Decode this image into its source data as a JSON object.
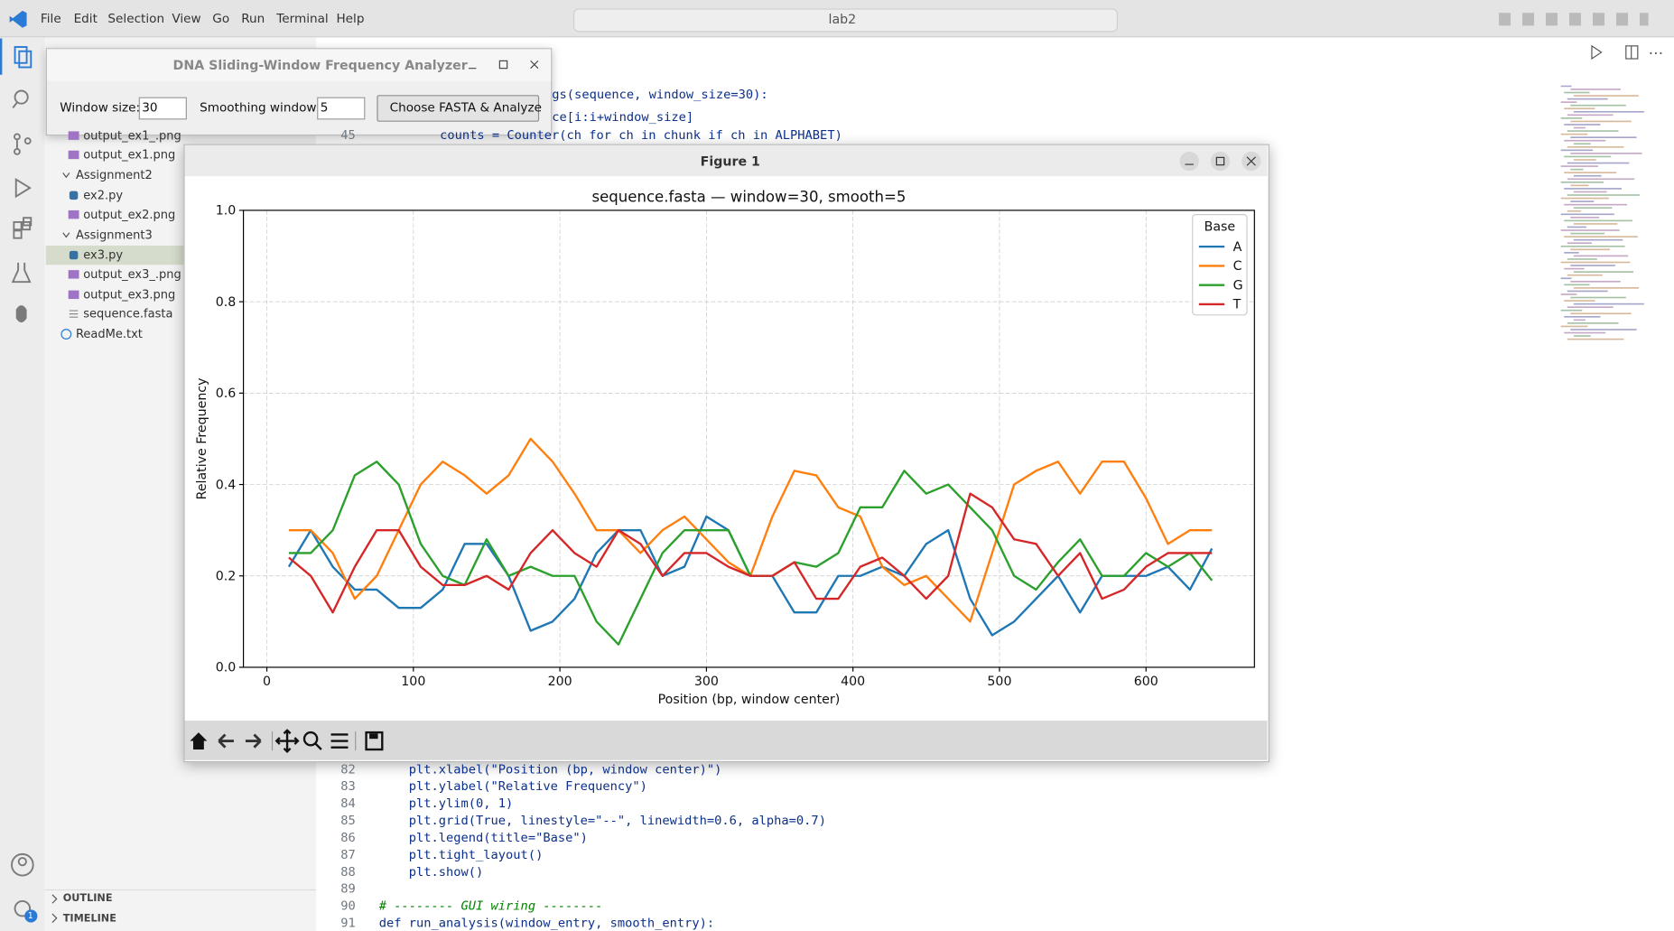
{
  "menu": [
    "File",
    "Edit",
    "Selection",
    "View",
    "Go",
    "Run",
    "Terminal",
    "Help"
  ],
  "search": "lab2",
  "explorer": [
    "output_ex1_.png",
    "output_ex1.png",
    "Assignment2",
    "ex2.py",
    "output_ex2.png",
    "Assignment3",
    "ex3.py",
    "output_ex3_.png",
    "output_ex3.png",
    "sequence.fasta",
    "ReadMe.txt"
  ],
  "panels": [
    "OUTLINE",
    "TIMELINE"
  ],
  "badge": "1",
  "editor": {
    "top_lines": [
      {
        "text": "gs(sequence, window_size=30):"
      },
      {
        "text": "ce[i:i+window_size]"
      },
      {
        "number": "45",
        "text": "counts = Counter(ch for ch in chunk if ch in ALPHABET)"
      }
    ],
    "bottom_lines": [
      {
        "number": "82",
        "text": "    plt.xlabel(\"Position (bp, window center)\")"
      },
      {
        "number": "83",
        "text": "    plt.ylabel(\"Relative Frequency\")"
      },
      {
        "number": "84",
        "text": "    plt.ylim(0, 1)"
      },
      {
        "number": "85",
        "text": "    plt.grid(True, linestyle=\"--\", linewidth=0.6, alpha=0.7)"
      },
      {
        "number": "86",
        "text": "    plt.legend(title=\"Base\")"
      },
      {
        "number": "87",
        "text": "    plt.tight_layout()"
      },
      {
        "number": "88",
        "text": "    plt.show()"
      },
      {
        "number": "89"
      },
      {
        "number": "90",
        "text": "# -------- GUI wiring --------"
      },
      {
        "number": "91",
        "text": "def run_analysis(window_entry, smooth_entry):"
      }
    ]
  },
  "dialog": {
    "title": "DNA Sliding-Window Frequency Analyzer",
    "window_size_label": "Window size:",
    "window_size": "30",
    "smoothing_label": "Smoothing window:",
    "smoothing": "5",
    "button": "Choose FASTA & Analyze"
  },
  "figure": {
    "title": "Figure 1"
  },
  "chart_data": {
    "type": "line",
    "title": "sequence.fasta — window=30, smooth=5",
    "x_label": "Position (bp, window center)",
    "y_label": "Relative Frequency",
    "legend_title": "Base",
    "legend": "upper right",
    "grid": true,
    "x": [
      15,
      30,
      45,
      60,
      75,
      90,
      105,
      120,
      135,
      150,
      165,
      180,
      195,
      210,
      225,
      240,
      255,
      270,
      285,
      300,
      315,
      330,
      345,
      360,
      375,
      390,
      405,
      420,
      435,
      450,
      465,
      480,
      495,
      510,
      525,
      540,
      555,
      570,
      585,
      600,
      615,
      630,
      645
    ],
    "series": [
      {
        "name": "A",
        "color": "#1f77b4",
        "values": [
          0.22,
          0.3,
          0.22,
          0.17,
          0.17,
          0.13,
          0.13,
          0.17,
          0.27,
          0.27,
          0.2,
          0.08,
          0.1,
          0.15,
          0.25,
          0.3,
          0.3,
          0.2,
          0.22,
          0.33,
          0.3,
          0.2,
          0.2,
          0.12,
          0.12,
          0.2,
          0.2,
          0.22,
          0.2,
          0.27,
          0.3,
          0.15,
          0.07,
          0.1,
          0.15,
          0.2,
          0.12,
          0.2,
          0.2,
          0.2,
          0.22,
          0.17,
          0.26
        ]
      },
      {
        "name": "C",
        "color": "#ff7f0e",
        "values": [
          0.3,
          0.3,
          0.25,
          0.15,
          0.2,
          0.3,
          0.4,
          0.45,
          0.42,
          0.38,
          0.42,
          0.5,
          0.45,
          0.38,
          0.3,
          0.3,
          0.25,
          0.3,
          0.33,
          0.28,
          0.23,
          0.2,
          0.33,
          0.43,
          0.42,
          0.35,
          0.33,
          0.22,
          0.18,
          0.2,
          0.15,
          0.1,
          0.25,
          0.4,
          0.43,
          0.45,
          0.38,
          0.45,
          0.45,
          0.37,
          0.27,
          0.3,
          0.3
        ]
      },
      {
        "name": "G",
        "color": "#2ca02c",
        "values": [
          0.25,
          0.25,
          0.3,
          0.42,
          0.45,
          0.4,
          0.27,
          0.2,
          0.18,
          0.28,
          0.2,
          0.22,
          0.2,
          0.2,
          0.1,
          0.05,
          0.15,
          0.25,
          0.3,
          0.3,
          0.3,
          0.2,
          0.2,
          0.23,
          0.22,
          0.25,
          0.35,
          0.35,
          0.43,
          0.38,
          0.4,
          0.35,
          0.3,
          0.2,
          0.17,
          0.23,
          0.28,
          0.2,
          0.2,
          0.25,
          0.22,
          0.25,
          0.19
        ]
      },
      {
        "name": "T",
        "color": "#d62728",
        "values": [
          0.24,
          0.2,
          0.12,
          0.22,
          0.3,
          0.3,
          0.22,
          0.18,
          0.18,
          0.2,
          0.17,
          0.25,
          0.3,
          0.25,
          0.22,
          0.3,
          0.27,
          0.2,
          0.25,
          0.25,
          0.22,
          0.2,
          0.2,
          0.23,
          0.15,
          0.15,
          0.22,
          0.24,
          0.2,
          0.15,
          0.2,
          0.38,
          0.35,
          0.28,
          0.27,
          0.2,
          0.25,
          0.15,
          0.17,
          0.22,
          0.25,
          0.25,
          0.25
        ]
      }
    ],
    "xlim": [
      -16,
      674
    ],
    "xticks": [
      0,
      100,
      200,
      300,
      400,
      500,
      600
    ],
    "ylim": [
      0,
      1
    ],
    "yticks": [
      {
        "value": 0,
        "label": "0.0"
      },
      {
        "value": 0.2,
        "label": "0.2"
      },
      {
        "value": 0.4,
        "label": "0.4"
      },
      {
        "value": 0.6,
        "label": "0.6"
      },
      {
        "value": 0.8,
        "label": "0.8"
      },
      {
        "value": 1,
        "label": "1.0"
      }
    ]
  }
}
